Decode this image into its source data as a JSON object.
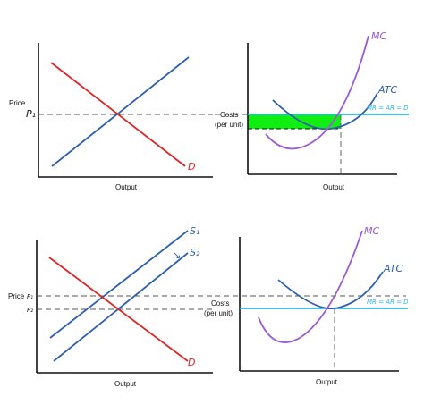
{
  "colors": {
    "supply": "#2f5fb0",
    "demand": "#e02424",
    "mc": "#9a5ad6",
    "atc": "#2f5fb0",
    "price_line": "#29b6e6",
    "profit_fill": "#11ee11",
    "axis": "#111111",
    "dashed": "#555555"
  },
  "chart_data": [
    {
      "type": "line",
      "panel": "market-top",
      "xlabel": "Output",
      "ylabel": "Price",
      "price_mark": "P₁",
      "series": [
        {
          "name": "D",
          "role": "demand"
        },
        {
          "name": "",
          "role": "supply"
        }
      ]
    },
    {
      "type": "line",
      "panel": "firm-top",
      "xlabel": "Output",
      "ylabel": "Costs\n(per unit)",
      "series": [
        {
          "name": "MC",
          "role": "marginal-cost"
        },
        {
          "name": "ATC",
          "role": "average-total-cost"
        },
        {
          "name": "MR = AR = D",
          "role": "price-line"
        }
      ],
      "shaded_region": "profit"
    },
    {
      "type": "line",
      "panel": "market-bottom",
      "xlabel": "Output",
      "ylabel": "Price",
      "price_marks": [
        "P₁",
        "P₂"
      ],
      "series": [
        {
          "name": "S₁",
          "role": "supply-original"
        },
        {
          "name": "S₂",
          "role": "supply-shifted"
        },
        {
          "name": "D",
          "role": "demand"
        }
      ],
      "shift_arrow": "↘"
    },
    {
      "type": "line",
      "panel": "firm-bottom",
      "xlabel": "Output",
      "ylabel": "Costs\n(per unit)",
      "series": [
        {
          "name": "MC",
          "role": "marginal-cost"
        },
        {
          "name": "ATC",
          "role": "average-total-cost"
        },
        {
          "name": "MR = AR = D",
          "role": "price-line"
        }
      ]
    }
  ]
}
